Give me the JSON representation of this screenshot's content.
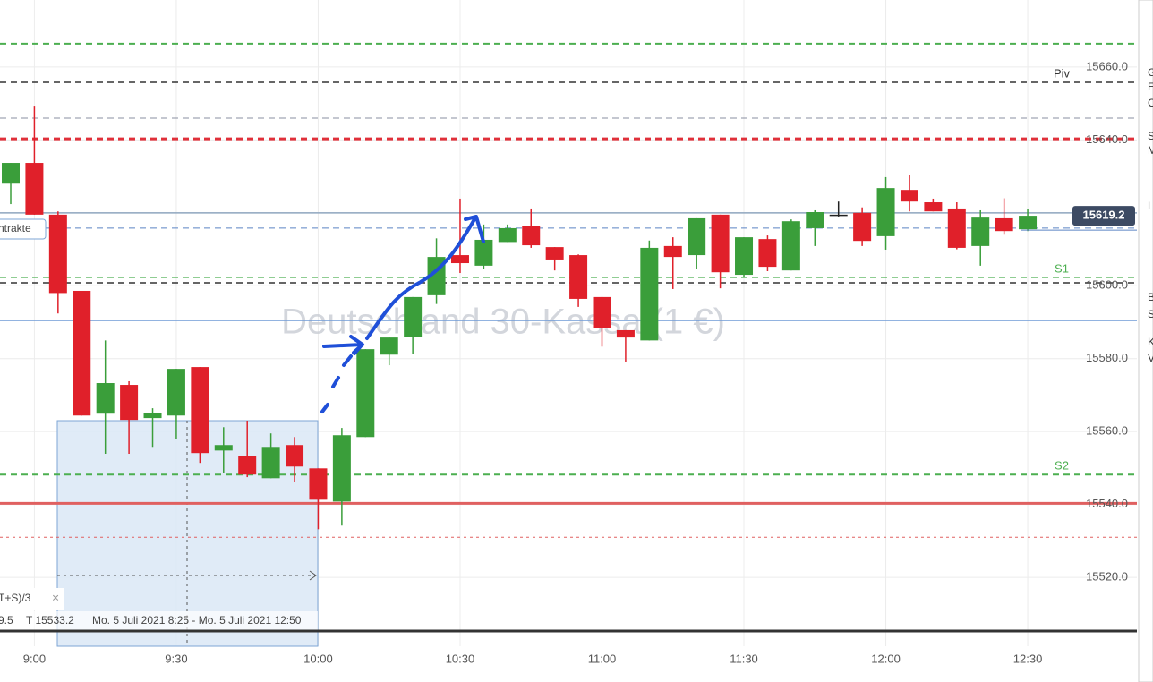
{
  "chart_data": {
    "type": "candlestick",
    "watermark": "Deutschland 30-Kassa (1 €)",
    "categories": [
      null,
      "9:00",
      null,
      null,
      null,
      null,
      null,
      "9:30",
      null,
      null,
      null,
      null,
      null,
      "10:00",
      null,
      null,
      null,
      null,
      null,
      "10:30",
      null,
      null,
      null,
      null,
      null,
      "11:00",
      null,
      null,
      null,
      null,
      null,
      "11:30",
      null,
      null,
      null,
      null,
      null,
      "12:00",
      null,
      null,
      null,
      null,
      null,
      "12:30"
    ],
    "open": [
      15628,
      15633.7,
      15619.5,
      15598.6,
      15564.9,
      15572.8,
      15563.7,
      15564.4,
      15577.7,
      15554.8,
      15553.4,
      15547.2,
      15556.3,
      15549.9,
      15540.8,
      15558.5,
      15581.1,
      15586,
      15597.4,
      15608.4,
      15605.5,
      15612,
      15616.3,
      15610.6,
      15608.4,
      15596.9,
      15587.8,
      15585,
      15610.9,
      15608.4,
      15619.5,
      15603,
      15612.8,
      15604.2,
      15615.8,
      15619.5,
      15620,
      15613.6,
      15626.3,
      15622.9,
      15621.2,
      15610.9,
      15618.5,
      15615.5
    ],
    "high": [
      15633.7,
      15649.4,
      15620.4,
      15598.6,
      15585,
      15573.8,
      15566.4,
      15577.2,
      15577.7,
      15561.2,
      15563,
      15559.5,
      15558.5,
      15549.9,
      15561,
      15582.6,
      15585.8,
      15596.9,
      15613,
      15623.9,
      15616.8,
      15616.8,
      15621.2,
      15610.6,
      15608.6,
      15596.9,
      15587.8,
      15612.4,
      15613.3,
      15618.5,
      15619.5,
      15613.3,
      15613.8,
      15618.2,
      15620.7,
      15623.1,
      15621.5,
      15629.8,
      15630.3,
      15623.9,
      15622.9,
      15620.7,
      15624,
      15621
    ],
    "low": [
      15622.4,
      15619.5,
      15592.4,
      15564.4,
      15553.9,
      15553.9,
      15555.8,
      15558,
      15551.4,
      15548.7,
      15547.5,
      15547.2,
      15546.2,
      15533.2,
      15534.2,
      15558.5,
      15578.2,
      15581.4,
      15595,
      15603.5,
      15604.6,
      15612,
      15610.4,
      15604.2,
      15594.2,
      15583.3,
      15579.2,
      15585,
      15599.1,
      15604.7,
      15599.3,
      15602.5,
      15604,
      15604.2,
      15610.9,
      15619,
      15610.9,
      15609.9,
      15620.4,
      15620.4,
      15610,
      15605.5,
      15614,
      15615
    ],
    "close": [
      15633.7,
      15619.5,
      15598,
      15564.4,
      15573.3,
      15563.2,
      15565.2,
      15577.2,
      15554.1,
      15556.3,
      15548.2,
      15555.8,
      15550.4,
      15541.3,
      15559,
      15582.6,
      15585.8,
      15596.9,
      15607.9,
      15606.2,
      15612.6,
      15615.8,
      15611.1,
      15607.2,
      15596.4,
      15588.5,
      15585.8,
      15610.4,
      15607.9,
      15618.5,
      15603.7,
      15613.3,
      15605.2,
      15617.7,
      15620.2,
      15619.5,
      15612.3,
      15626.8,
      15623.1,
      15620.4,
      15610.4,
      15618.7,
      15615,
      15619.2
    ],
    "up_color": "#3a9e3a",
    "down_color": "#e0202a",
    "neutral_color": "#222222",
    "ylim": [
      15501.6,
      15678.4
    ],
    "yticks": [
      {
        "value": 15660,
        "label": "15660.0"
      },
      {
        "value": 15640,
        "label": "15640.0"
      },
      {
        "value": 15620,
        "label": "15620.0"
      },
      {
        "value": 15600,
        "label": "15600.0"
      },
      {
        "value": 15580,
        "label": "15580.0"
      },
      {
        "value": 15560,
        "label": "15560.0"
      },
      {
        "value": 15540,
        "label": "15540.0"
      },
      {
        "value": 15520,
        "label": "15520.0"
      }
    ],
    "grid": true,
    "last_price": 15619.2,
    "levels": [
      {
        "value": 15666.4,
        "color": "#4caf50",
        "style": "dashed",
        "width": 2
      },
      {
        "value": 15655.8,
        "color": "#333333",
        "style": "dashed",
        "width": 1.5,
        "label": "Piv"
      },
      {
        "value": 15646,
        "color": "#8a8fa0",
        "style": "dashed",
        "width": 1
      },
      {
        "value": 15640.3,
        "color": "#e0303a",
        "style": "dashed",
        "width": 3
      },
      {
        "value": 15620,
        "color": "#8fa6bf",
        "style": "solid",
        "width": 1.5
      },
      {
        "value": 15615.8,
        "color": "#5b84c4",
        "style": "dashed",
        "width": 1
      },
      {
        "value": 15602.3,
        "color": "#4caf50",
        "style": "dashed",
        "width": 1.5,
        "label": "S1"
      },
      {
        "value": 15600.8,
        "color": "#333333",
        "style": "dashed",
        "width": 1.5
      },
      {
        "value": 15590.5,
        "color": "#6f9ad6",
        "style": "solid",
        "width": 1.5
      },
      {
        "value": 15548.2,
        "color": "#4caf50",
        "style": "dashed",
        "width": 2,
        "label": "S2"
      },
      {
        "value": 15540.3,
        "color": "#e06060",
        "style": "solid",
        "width": 3
      },
      {
        "value": 15531,
        "color": "#e06060",
        "style": "dotted",
        "width": 1
      }
    ]
  },
  "ui": {
    "contracts_button": "ntrakte",
    "indicator_label": "T+S)/3",
    "info_left": "9.5",
    "info_target": "T 15533.2",
    "info_range": "Mo. 5 Juli 2021 8:25 - Mo. 5 Juli 2021 12:50",
    "side_letters": [
      "G",
      "E",
      "C",
      "S",
      "M",
      "L",
      "B",
      "S",
      "K",
      "V"
    ]
  }
}
